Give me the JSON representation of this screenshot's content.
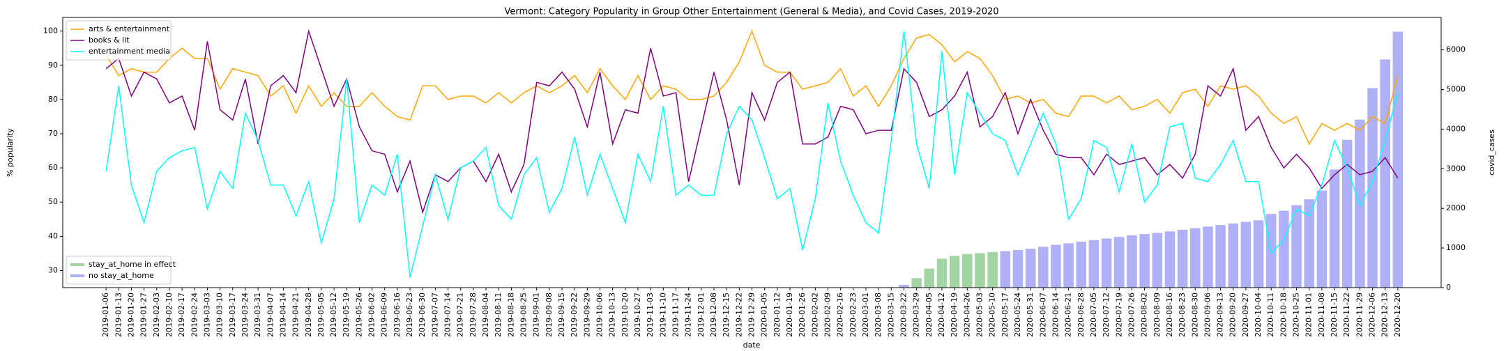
{
  "chart_data": {
    "type": "line",
    "title": "Vermont: Category Popularity in Group Other Entertainment (General & Media), and Covid Cases, 2019-2020",
    "x_label": "date",
    "y_label": "% popularity",
    "y2_label": "covid_cases",
    "categories": [
      "2019-01-06",
      "2019-01-13",
      "2019-01-20",
      "2019-01-27",
      "2019-02-03",
      "2019-02-10",
      "2019-02-17",
      "2019-02-24",
      "2019-03-03",
      "2019-03-10",
      "2019-03-17",
      "2019-03-24",
      "2019-03-31",
      "2019-04-07",
      "2019-04-14",
      "2019-04-21",
      "2019-04-28",
      "2019-05-05",
      "2019-05-12",
      "2019-05-19",
      "2019-05-26",
      "2019-06-02",
      "2019-06-09",
      "2019-06-16",
      "2019-06-23",
      "2019-06-30",
      "2019-07-07",
      "2019-07-14",
      "2019-07-21",
      "2019-07-28",
      "2019-08-04",
      "2019-08-11",
      "2019-08-18",
      "2019-08-25",
      "2019-09-01",
      "2019-09-08",
      "2019-09-15",
      "2019-09-22",
      "2019-09-29",
      "2019-10-06",
      "2019-10-13",
      "2019-10-20",
      "2019-10-27",
      "2019-11-03",
      "2019-11-10",
      "2019-11-17",
      "2019-11-24",
      "2019-12-01",
      "2019-12-08",
      "2019-12-15",
      "2019-12-22",
      "2019-12-29",
      "2020-01-05",
      "2020-01-12",
      "2020-01-19",
      "2020-01-26",
      "2020-02-02",
      "2020-02-09",
      "2020-02-16",
      "2020-02-23",
      "2020-03-01",
      "2020-03-08",
      "2020-03-15",
      "2020-03-22",
      "2020-03-29",
      "2020-04-05",
      "2020-04-12",
      "2020-04-19",
      "2020-04-26",
      "2020-05-03",
      "2020-05-10",
      "2020-05-17",
      "2020-05-24",
      "2020-05-31",
      "2020-06-07",
      "2020-06-14",
      "2020-06-21",
      "2020-06-28",
      "2020-07-05",
      "2020-07-12",
      "2020-07-19",
      "2020-07-26",
      "2020-08-02",
      "2020-08-09",
      "2020-08-16",
      "2020-08-23",
      "2020-08-30",
      "2020-09-06",
      "2020-09-13",
      "2020-09-20",
      "2020-09-27",
      "2020-10-04",
      "2020-10-11",
      "2020-10-18",
      "2020-10-25",
      "2020-11-01",
      "2020-11-08",
      "2020-11-15",
      "2020-11-22",
      "2020-11-29",
      "2020-12-06",
      "2020-12-13",
      "2020-12-20"
    ],
    "series": [
      {
        "name": "arts & entertainment",
        "color": "#ffa500",
        "values": [
          93,
          87,
          89,
          88,
          88,
          92,
          95,
          92,
          92,
          83,
          89,
          88,
          87,
          81,
          84,
          76,
          84,
          78,
          82,
          78,
          78,
          82,
          78,
          75,
          74,
          84,
          84,
          80,
          81,
          81,
          79,
          82,
          79,
          82,
          84,
          82,
          84,
          87,
          82,
          89,
          84,
          80,
          87,
          80,
          84,
          83,
          80,
          80,
          81,
          85,
          91,
          100,
          90,
          88,
          88,
          83,
          84,
          85,
          89,
          81,
          84,
          78,
          84,
          92,
          98,
          99,
          96,
          91,
          94,
          92,
          87,
          80,
          81,
          79,
          80,
          76,
          75,
          81,
          81,
          79,
          81,
          77,
          78,
          80,
          76,
          82,
          83,
          78,
          84,
          83,
          84,
          81,
          76,
          73,
          75,
          67,
          73,
          71,
          73,
          71,
          75,
          73,
          87
        ]
      },
      {
        "name": "books & lit",
        "color": "#800080",
        "values": [
          89,
          92,
          81,
          88,
          86,
          79,
          81,
          71,
          97,
          77,
          74,
          86,
          67,
          84,
          87,
          82,
          100,
          89,
          78,
          86,
          72,
          65,
          64,
          53,
          62,
          47,
          58,
          56,
          60,
          62,
          56,
          64,
          53,
          61,
          85,
          84,
          88,
          83,
          72,
          88,
          67,
          77,
          76,
          95,
          81,
          82,
          56,
          72,
          88,
          74,
          55,
          82,
          74,
          85,
          88,
          67,
          67,
          69,
          78,
          77,
          70,
          71,
          71,
          89,
          85,
          75,
          77,
          81,
          88,
          72,
          75,
          82,
          70,
          80,
          71,
          64,
          63,
          63,
          58,
          64,
          61,
          62,
          63,
          58,
          61,
          57,
          64,
          84,
          81,
          89,
          71,
          75,
          66,
          60,
          64,
          60,
          54,
          58,
          61,
          58,
          59,
          63,
          57
        ]
      },
      {
        "name": "entertainment media",
        "color": "#00ffff",
        "values": [
          59,
          84,
          55,
          44,
          59,
          63,
          65,
          66,
          48,
          59,
          54,
          76,
          68,
          55,
          55,
          46,
          56,
          38,
          51,
          86,
          44,
          55,
          52,
          64,
          28,
          43,
          58,
          45,
          60,
          62,
          66,
          49,
          45,
          58,
          63,
          47,
          54,
          69,
          52,
          64,
          54,
          44,
          64,
          56,
          78,
          52,
          55,
          52,
          52,
          70,
          78,
          74,
          63,
          51,
          54,
          36,
          51,
          79,
          62,
          52,
          44,
          41,
          68,
          100,
          67,
          54,
          94,
          58,
          82,
          76,
          70,
          68,
          58,
          67,
          76,
          67,
          45,
          51,
          68,
          66,
          53,
          67,
          50,
          55,
          72,
          73,
          57,
          56,
          61,
          68,
          56,
          56,
          35,
          39,
          48,
          46,
          55,
          68,
          60,
          49,
          56,
          68,
          82
        ]
      },
      {
        "name": "stay_at_home in effect",
        "type": "bar",
        "axis": "y2",
        "color": "#a3d4a3",
        "values": [
          null,
          null,
          null,
          null,
          null,
          null,
          null,
          null,
          null,
          null,
          null,
          null,
          null,
          null,
          null,
          null,
          null,
          null,
          null,
          null,
          null,
          null,
          null,
          null,
          null,
          null,
          null,
          null,
          null,
          null,
          null,
          null,
          null,
          null,
          null,
          null,
          null,
          null,
          null,
          null,
          null,
          null,
          null,
          null,
          null,
          null,
          null,
          null,
          null,
          null,
          null,
          null,
          null,
          null,
          null,
          null,
          null,
          null,
          null,
          null,
          null,
          null,
          null,
          null,
          240,
          480,
          730,
          800,
          850,
          870,
          900,
          null,
          null,
          null,
          null,
          null,
          null,
          null,
          null,
          null,
          null,
          null,
          null,
          null,
          null,
          null,
          null,
          null,
          null,
          null,
          null,
          null,
          null,
          null,
          null,
          null,
          null,
          null,
          null,
          null,
          null,
          null,
          null
        ]
      },
      {
        "name": "no stay_at_home",
        "type": "bar",
        "axis": "y2",
        "color": "#b0b0f6",
        "values": [
          0,
          0,
          0,
          0,
          0,
          0,
          0,
          0,
          0,
          0,
          0,
          0,
          0,
          0,
          0,
          0,
          0,
          0,
          0,
          0,
          0,
          0,
          0,
          0,
          0,
          0,
          0,
          0,
          0,
          0,
          0,
          0,
          0,
          0,
          0,
          0,
          0,
          0,
          0,
          0,
          0,
          0,
          0,
          0,
          0,
          0,
          0,
          0,
          0,
          0,
          0,
          0,
          0,
          0,
          0,
          0,
          0,
          0,
          0,
          0,
          0,
          0,
          10,
          70,
          null,
          null,
          null,
          null,
          null,
          null,
          null,
          920,
          950,
          980,
          1030,
          1080,
          1120,
          1160,
          1200,
          1240,
          1280,
          1320,
          1350,
          1380,
          1420,
          1460,
          1500,
          1540,
          1580,
          1620,
          1660,
          1700,
          1860,
          1940,
          2080,
          2230,
          2450,
          2980,
          3730,
          4240,
          5036,
          5760,
          6460
        ]
      }
    ],
    "ylim": [
      25,
      104
    ],
    "yticks": [
      30,
      40,
      50,
      60,
      70,
      80,
      90,
      100
    ],
    "y2lim": [
      0,
      6820
    ],
    "y2ticks": [
      0,
      1000,
      2000,
      3000,
      4000,
      5000,
      6000
    ],
    "legend": "upper left",
    "bar_legend": "lower left"
  }
}
